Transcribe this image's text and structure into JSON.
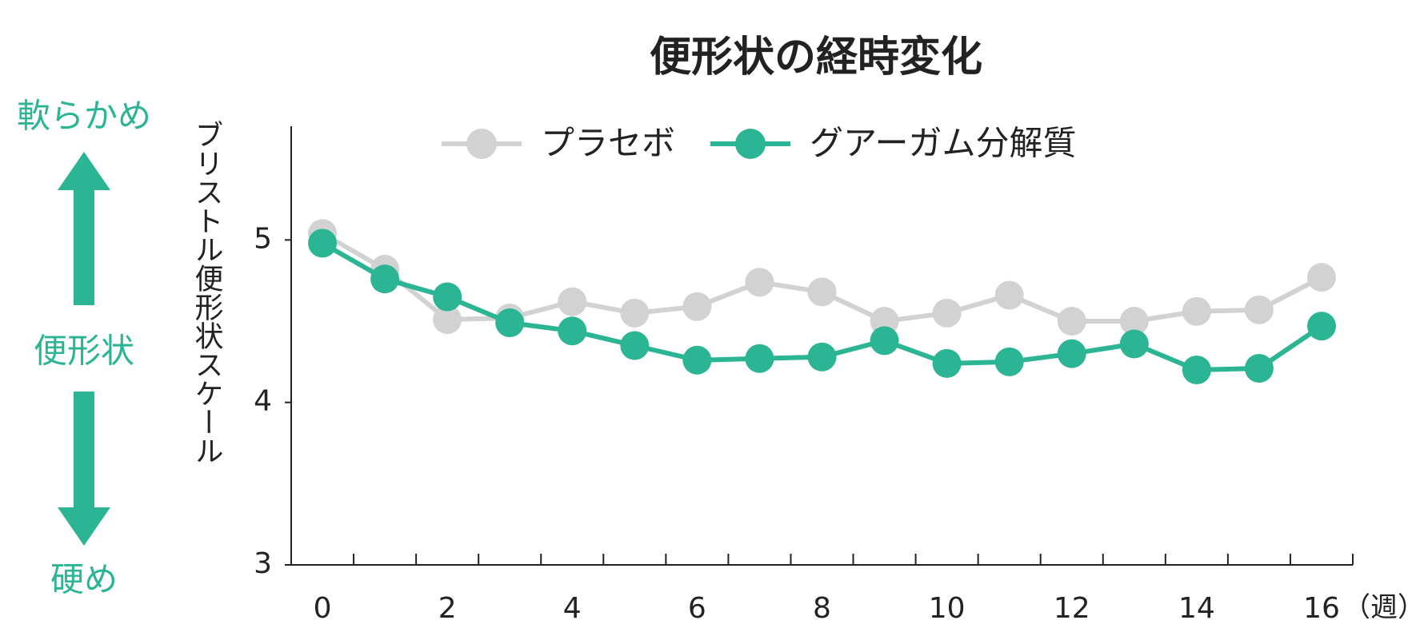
{
  "chart_data": {
    "type": "line",
    "title": "便形状の経時変化",
    "y_label": "ブリストル便形状スケール",
    "x_label": "（週）",
    "annotations": {
      "top": "軟らかめ",
      "middle": "便形状",
      "bottom": "硬め"
    },
    "x": [
      0,
      1,
      2,
      3,
      4,
      5,
      6,
      7,
      8,
      9,
      10,
      11,
      12,
      13,
      14,
      15,
      16
    ],
    "xlim": [
      -0.5,
      16.5
    ],
    "xticks": [
      0,
      2,
      4,
      6,
      8,
      10,
      12,
      14,
      16
    ],
    "ylim": [
      3,
      5.7
    ],
    "yticks": [
      3,
      4,
      5
    ],
    "series": [
      {
        "name": "プラセボ",
        "color": "#d2d2d2",
        "values": [
          5.04,
          4.82,
          4.51,
          4.52,
          4.62,
          4.55,
          4.59,
          4.74,
          4.68,
          4.5,
          4.55,
          4.66,
          4.5,
          4.5,
          4.56,
          4.57,
          4.77
        ]
      },
      {
        "name": "グアーガム分解質",
        "color": "#2bb595",
        "values": [
          4.98,
          4.76,
          4.65,
          4.49,
          4.44,
          4.35,
          4.26,
          4.27,
          4.28,
          4.38,
          4.24,
          4.25,
          4.3,
          4.36,
          4.2,
          4.21,
          4.47
        ]
      }
    ]
  }
}
